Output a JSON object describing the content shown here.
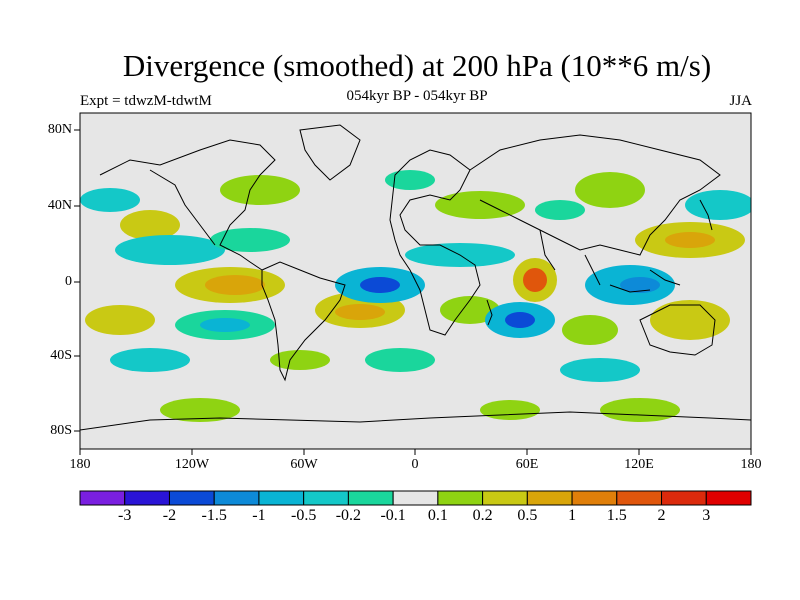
{
  "title": "Divergence (smoothed) at 200 hPa (10**6 m/s)",
  "subtitle": "054kyr BP - 054kyr BP",
  "expt_label": "Expt = tdwzM-tdwtM",
  "season": "JJA",
  "lat_ticks": [
    "80N",
    "40N",
    "0",
    "40S",
    "80S"
  ],
  "lon_ticks": [
    "180",
    "120W",
    "60W",
    "0",
    "60E",
    "120E",
    "180"
  ],
  "colorbar": {
    "labels": [
      "-3",
      "-2",
      "-1.5",
      "-1",
      "-0.5",
      "-0.2",
      "-0.1",
      "0.1",
      "0.2",
      "0.5",
      "1",
      "1.5",
      "2",
      "3"
    ],
    "colors": [
      "#7a1fe0",
      "#2a14d6",
      "#0b4ad6",
      "#0d8ad8",
      "#0ab4d4",
      "#14c8c8",
      "#1ad69c",
      "#e6e6e6",
      "#8fd312",
      "#c9c914",
      "#d9a50a",
      "#e07f0a",
      "#e0560c",
      "#db2a0c",
      "#e00000"
    ]
  },
  "colors": {
    "land_outline": "#000000",
    "background": "#e6e6e6"
  }
}
